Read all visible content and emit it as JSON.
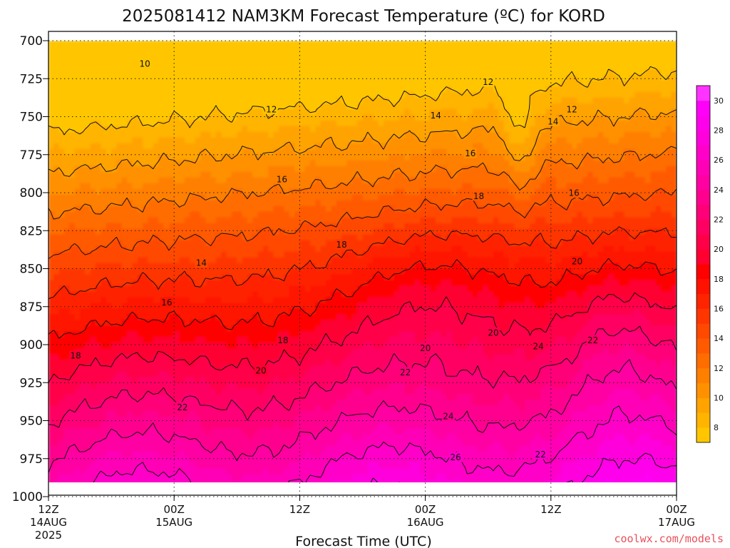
{
  "chart_data": {
    "type": "heatmap",
    "title": "2025081412 NAM3KM Forecast Temperature (ºC) for KORD",
    "xlabel": "Forecast Time (UTC)",
    "ylabel": "",
    "credit": "coolwx.com/models",
    "x_ticks": [
      {
        "hour": 0,
        "time": "12Z",
        "date": "14AUG",
        "year": "2025"
      },
      {
        "hour": 12,
        "time": "00Z",
        "date": "15AUG",
        "year": ""
      },
      {
        "hour": 24,
        "time": "12Z",
        "date": "",
        "year": ""
      },
      {
        "hour": 36,
        "time": "00Z",
        "date": "16AUG",
        "year": ""
      },
      {
        "hour": 48,
        "time": "12Z",
        "date": "",
        "year": ""
      },
      {
        "hour": 60,
        "time": "00Z",
        "date": "17AUG",
        "year": ""
      }
    ],
    "xlim": [
      0,
      60
    ],
    "y_ticks": [
      "700",
      "725",
      "750",
      "775",
      "800",
      "825",
      "850",
      "875",
      "900",
      "925",
      "950",
      "975",
      "1000"
    ],
    "ylim": [
      1000,
      700
    ],
    "grid": true,
    "colorbar": {
      "labels": [
        "8",
        "10",
        "12",
        "14",
        "16",
        "18",
        "20",
        "22",
        "24",
        "26",
        "28",
        "30"
      ],
      "levels": [
        7,
        8,
        9,
        10,
        11,
        12,
        13,
        14,
        15,
        16,
        17,
        18,
        19,
        20,
        21,
        22,
        23,
        24,
        25,
        26,
        27,
        28,
        29,
        30,
        31
      ],
      "colors": [
        "#ffc600",
        "#ffb400",
        "#ffa300",
        "#ff9100",
        "#ff7f00",
        "#ff6d00",
        "#ff5a00",
        "#ff4800",
        "#ff3600",
        "#ff2400",
        "#ff1200",
        "#ff0000",
        "#ff0030",
        "#ff0048",
        "#ff0062",
        "#ff0078",
        "#ff008e",
        "#ff00a2",
        "#ff00b6",
        "#ff00c8",
        "#ff00dc",
        "#ff00ec",
        "#ff00f8",
        "#ff33ff"
      ]
    },
    "contour_labels": [
      {
        "value": "10",
        "hour": 9.2,
        "p": 715
      },
      {
        "value": "12",
        "hour": 42,
        "p": 727
      },
      {
        "value": "12",
        "hour": 21.3,
        "p": 745
      },
      {
        "value": "12",
        "hour": 50,
        "p": 745
      },
      {
        "value": "14",
        "hour": 37,
        "p": 749
      },
      {
        "value": "14",
        "hour": 48.2,
        "p": 753
      },
      {
        "value": "16",
        "hour": 40.3,
        "p": 774
      },
      {
        "value": "16",
        "hour": 22.3,
        "p": 791
      },
      {
        "value": "16",
        "hour": 50.2,
        "p": 800
      },
      {
        "value": "18",
        "hour": 41.1,
        "p": 802
      },
      {
        "value": "18",
        "hour": 28,
        "p": 834
      },
      {
        "value": "20",
        "hour": 50.5,
        "p": 845
      },
      {
        "value": "14",
        "hour": 14.6,
        "p": 846
      },
      {
        "value": "16",
        "hour": 11.3,
        "p": 872
      },
      {
        "value": "20",
        "hour": 42.5,
        "p": 892
      },
      {
        "value": "18",
        "hour": 22.4,
        "p": 897
      },
      {
        "value": "22",
        "hour": 52,
        "p": 897
      },
      {
        "value": "24",
        "hour": 46.8,
        "p": 901
      },
      {
        "value": "20",
        "hour": 36,
        "p": 902
      },
      {
        "value": "18",
        "hour": 2.6,
        "p": 907
      },
      {
        "value": "20",
        "hour": 20.3,
        "p": 917
      },
      {
        "value": "22",
        "hour": 34.1,
        "p": 918
      },
      {
        "value": "22",
        "hour": 12.8,
        "p": 941
      },
      {
        "value": "24",
        "hour": 38.2,
        "p": 947
      },
      {
        "value": "26",
        "hour": 38.9,
        "p": 974
      },
      {
        "value": "22",
        "hour": 47,
        "p": 972
      }
    ]
  }
}
